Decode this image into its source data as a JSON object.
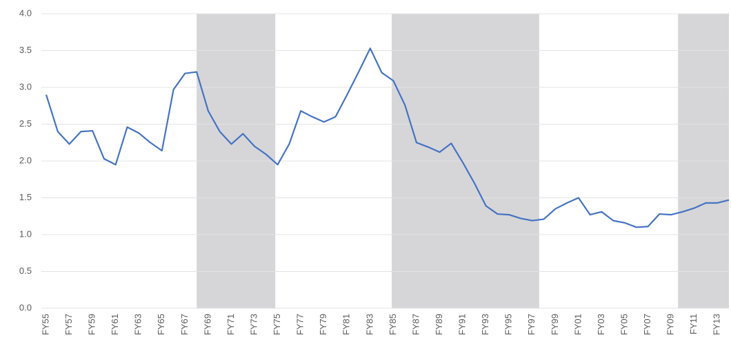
{
  "chart_data": {
    "type": "line",
    "categories": [
      "FY55",
      null,
      "FY57",
      null,
      "FY59",
      null,
      "FY61",
      null,
      "FY63",
      null,
      "FY65",
      null,
      "FY67",
      null,
      "FY69",
      null,
      "FY71",
      null,
      "FY73",
      null,
      "FY75",
      null,
      "FY77",
      null,
      "FY79",
      null,
      "FY81",
      null,
      "FY83",
      null,
      "FY85",
      null,
      "FY87",
      null,
      "FY89",
      null,
      "FY91",
      null,
      "FY93",
      null,
      "FY95",
      null,
      "FY97",
      null,
      "FY99",
      null,
      "FY01",
      null,
      "FY03",
      null,
      "FY05",
      null,
      "FY07",
      null,
      "FY09",
      null,
      "FY11",
      null,
      "FY13",
      null
    ],
    "series": [
      {
        "color": "#4472c4",
        "values": [
          2.9,
          2.4,
          2.23,
          2.4,
          2.41,
          2.03,
          1.95,
          2.46,
          2.38,
          2.25,
          2.14,
          2.97,
          3.19,
          3.21,
          2.68,
          2.4,
          2.23,
          2.37,
          2.2,
          2.09,
          1.95,
          2.23,
          2.68,
          2.6,
          2.53,
          2.6,
          2.9,
          3.21,
          3.53,
          3.2,
          3.09,
          2.76,
          2.25,
          2.19,
          2.12,
          2.24,
          1.98,
          1.7,
          1.39,
          1.28,
          1.27,
          1.22,
          1.19,
          1.21,
          1.35,
          1.43,
          1.5,
          1.27,
          1.31,
          1.19,
          1.16,
          1.1,
          1.11,
          1.28,
          1.27,
          1.31,
          1.36,
          1.43,
          1.43,
          1.47
        ]
      }
    ],
    "shaded": [
      {
        "from": 13,
        "to": 19.8
      },
      {
        "from": 29.86,
        "to": 42.6
      },
      {
        "from": 54.6,
        "to": 59
      }
    ],
    "shade_color": "#d6d6d8",
    "ylim": [
      0,
      4
    ],
    "yticks": [
      {
        "value": 0,
        "label": "0.0"
      },
      {
        "value": 0.5,
        "label": "0.5"
      },
      {
        "value": 1,
        "label": "1.0"
      },
      {
        "value": 1.5,
        "label": "1.5"
      },
      {
        "value": 2,
        "label": "2.0"
      },
      {
        "value": 2.5,
        "label": "2.5"
      },
      {
        "value": 3,
        "label": "3.0"
      },
      {
        "value": 3.5,
        "label": "3.5"
      },
      {
        "value": 4,
        "label": "4.0"
      }
    ],
    "grid": true
  }
}
